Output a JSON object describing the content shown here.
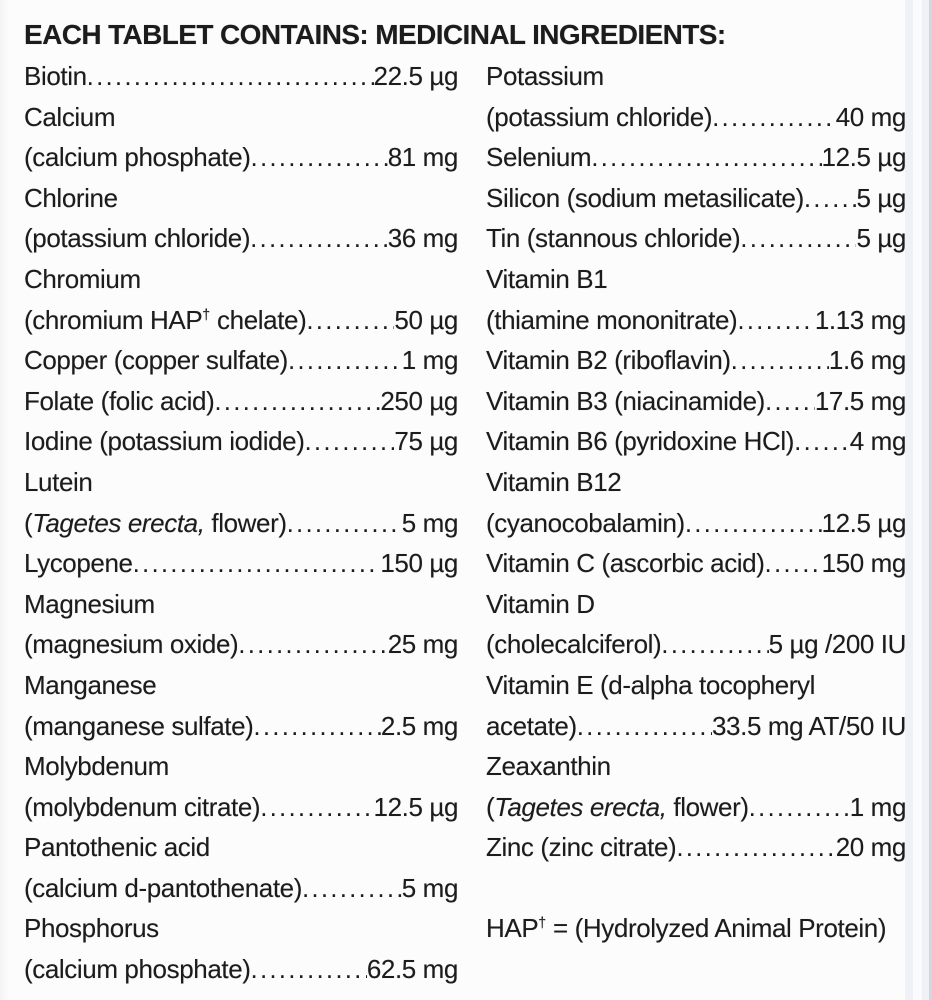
{
  "panel": {
    "title": "EACH TABLET CONTAINS: MEDICINAL INGREDIENTS:",
    "text_color": "#1c1c1c",
    "background_color": "#fcfcfd",
    "edge_strip_color": "#f0f1f6",
    "edge_line_color": "#d3d7e0"
  },
  "columns": {
    "left": {
      "rows": [
        {
          "name": "Biotin ",
          "value": "22.5 µg"
        },
        {
          "name": "Calcium",
          "value": null
        },
        {
          "name": "(calcium phosphate) ",
          "value": "81 mg"
        },
        {
          "name": "Chlorine",
          "value": null
        },
        {
          "name": "(potassium chloride) ",
          "value": "36 mg"
        },
        {
          "name": "Chromium",
          "value": null
        },
        {
          "segments": [
            {
              "text": "(chromium HAP"
            },
            {
              "text": "†",
              "sup": true
            },
            {
              "text": " chelate)"
            }
          ],
          "value": "50 µg"
        },
        {
          "name": "Copper (copper sulfate)",
          "value": "1 mg"
        },
        {
          "name": "Folate (folic acid)",
          "value": "250 µg"
        },
        {
          "name": "Iodine (potassium iodide) ",
          "value": "75 µg"
        },
        {
          "name": "Lutein",
          "value": null
        },
        {
          "segments": [
            {
              "text": "("
            },
            {
              "text": "Tagetes erecta,",
              "italic": true
            },
            {
              "text": " flower) "
            }
          ],
          "value": "5 mg"
        },
        {
          "name": "Lycopene",
          "value": "150 µg"
        },
        {
          "name": "Magnesium",
          "value": null
        },
        {
          "name": "(magnesium oxide)",
          "value": "25 mg"
        },
        {
          "name": "Manganese",
          "value": null
        },
        {
          "name": "(manganese sulfate) ",
          "value": "2.5 mg"
        },
        {
          "name": "Molybdenum",
          "value": null
        },
        {
          "name": "(molybdenum citrate)",
          "value": "12.5 µg"
        },
        {
          "name": "Pantothenic acid",
          "value": null
        },
        {
          "name": "(calcium d-pantothenate) ",
          "value": "5 mg"
        },
        {
          "name": "Phosphorus",
          "value": null
        },
        {
          "name": "(calcium phosphate) ",
          "value": "62.5 mg"
        }
      ]
    },
    "right": {
      "rows": [
        {
          "name": "Potassium",
          "value": null
        },
        {
          "name": "(potassium chloride) ",
          "value": "40 mg"
        },
        {
          "name": "Selenium",
          "value": "12.5 µg"
        },
        {
          "name": "Silicon (sodium metasilicate) ",
          "value": "5 µg"
        },
        {
          "name": "Tin (stannous chloride) ",
          "value": "5 µg"
        },
        {
          "name": "Vitamin B1",
          "value": null
        },
        {
          "name": "(thiamine mononitrate) ",
          "value": "1.13 mg"
        },
        {
          "name": "Vitamin B2 (riboflavin)",
          "value": "1.6 mg"
        },
        {
          "name": "Vitamin B3 (niacinamide) ",
          "value": "17.5 mg"
        },
        {
          "name": "Vitamin B6 (pyridoxine HCl) ",
          "value": "4 mg"
        },
        {
          "name": "Vitamin B12",
          "value": null
        },
        {
          "name": "(cyanocobalamin) ",
          "value": "12.5 µg"
        },
        {
          "name": "Vitamin C (ascorbic acid) ",
          "value": "150 mg"
        },
        {
          "name": "Vitamin D",
          "value": null
        },
        {
          "name": "(cholecalciferol) ",
          "value": " 5 µg /200 IU"
        },
        {
          "name": "Vitamin E (d-alpha tocopheryl",
          "value": null
        },
        {
          "name": "acetate)",
          "value": "33.5 mg AT/50 IU"
        },
        {
          "name": "Zeaxanthin",
          "value": null
        },
        {
          "segments": [
            {
              "text": "("
            },
            {
              "text": "Tagetes erecta,",
              "italic": true
            },
            {
              "text": " flower) "
            }
          ],
          "value": "1 mg"
        },
        {
          "name": "Zinc (zinc citrate)",
          "value": "20 mg"
        },
        {
          "spacer": true
        },
        {
          "segments": [
            {
              "text": "HAP"
            },
            {
              "text": "†",
              "sup": true
            },
            {
              "text": " = (Hydrolyzed Animal Protein)"
            }
          ],
          "value": null,
          "footnote": true
        }
      ]
    }
  }
}
